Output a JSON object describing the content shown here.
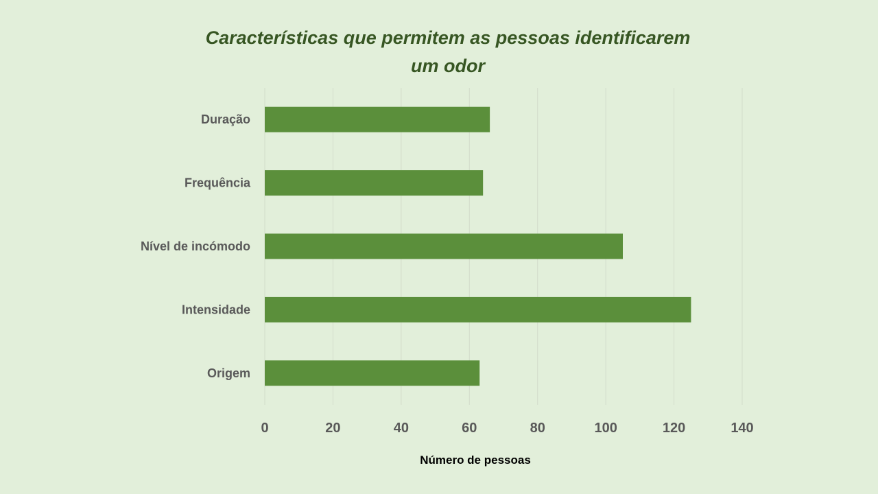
{
  "colors": {
    "background": "#e2efda",
    "bar": "#5b8f3b",
    "title": "#375623",
    "label": "#595959",
    "axis_title": "#000000",
    "grid": "#d3dccb"
  },
  "chart_data": {
    "type": "bar",
    "orientation": "horizontal",
    "title_lines": [
      "Características que permitem as pessoas identificarem",
      "um odor"
    ],
    "categories": [
      "Duração",
      "Frequência",
      "Nível de incómodo",
      "Intensidade",
      "Origem"
    ],
    "values": [
      66,
      64,
      105,
      125,
      63
    ],
    "xlabel": "Número de pessoas",
    "ylabel": "",
    "xlim": [
      0,
      140
    ],
    "xticks": [
      0,
      20,
      40,
      60,
      80,
      100,
      120,
      140
    ],
    "grid": true,
    "legend": "none"
  }
}
